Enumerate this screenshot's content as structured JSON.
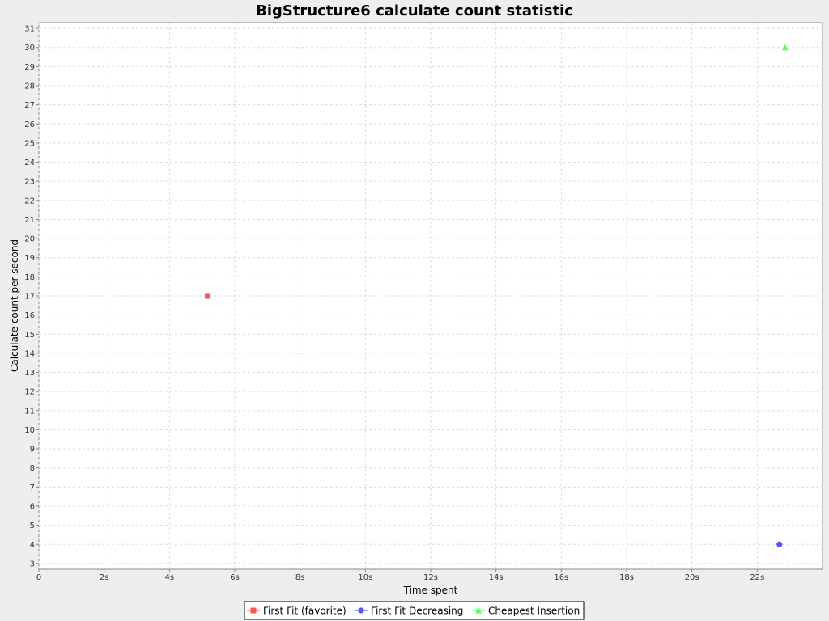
{
  "chart_data": {
    "type": "scatter",
    "title": "BigStructure6 calculate count statistic",
    "xlabel": "Time spent",
    "ylabel": "Calculate count per second",
    "xlim": [
      0,
      24
    ],
    "ylim": [
      2.7,
      31.3
    ],
    "x_ticks": [
      0,
      2,
      4,
      6,
      8,
      10,
      12,
      14,
      16,
      18,
      20,
      22
    ],
    "x_tick_labels": [
      "0",
      "2s",
      "4s",
      "6s",
      "8s",
      "10s",
      "12s",
      "14s",
      "16s",
      "18s",
      "20s",
      "22s"
    ],
    "y_ticks": [
      3,
      4,
      5,
      6,
      7,
      8,
      9,
      10,
      11,
      12,
      13,
      14,
      15,
      16,
      17,
      18,
      19,
      20,
      21,
      22,
      23,
      24,
      25,
      26,
      27,
      28,
      29,
      30,
      31
    ],
    "grid": true,
    "legend_position": "bottom",
    "series": [
      {
        "name": "First Fit (favorite)",
        "marker": "square",
        "color": "#ff5555",
        "points": [
          {
            "x": 5.17,
            "y": 17
          }
        ]
      },
      {
        "name": "First Fit Decreasing",
        "marker": "circle",
        "color": "#5555ff",
        "points": [
          {
            "x": 22.68,
            "y": 4
          }
        ]
      },
      {
        "name": "Cheapest Insertion",
        "marker": "triangle",
        "color": "#55ff55",
        "points": [
          {
            "x": 22.85,
            "y": 30
          }
        ]
      }
    ]
  }
}
